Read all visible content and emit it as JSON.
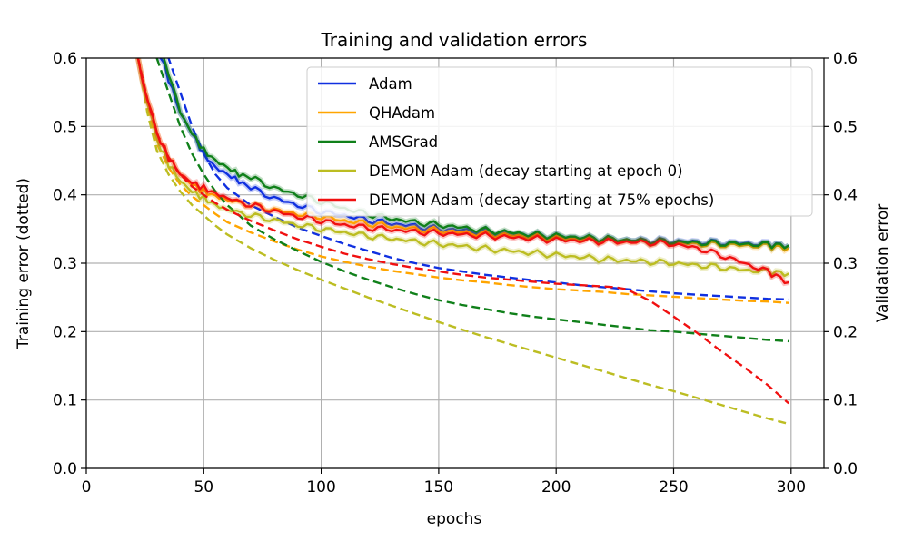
{
  "chart_data": {
    "type": "line",
    "title": "Training and validation errors",
    "xlabel": "epochs",
    "ylabel_left": "Training error (dotted)",
    "ylabel_right": "Validation error",
    "xlim": [
      0,
      314
    ],
    "ylim": [
      0,
      0.6
    ],
    "xticks": [
      0,
      50,
      100,
      150,
      200,
      250,
      300
    ],
    "yticks": [
      0.0,
      0.1,
      0.2,
      0.3,
      0.4,
      0.5,
      0.6
    ],
    "xtick_labels": [
      "0",
      "50",
      "100",
      "150",
      "200",
      "250",
      "300"
    ],
    "ytick_labels": [
      "0.0",
      "0.1",
      "0.2",
      "0.3",
      "0.4",
      "0.5",
      "0.6"
    ],
    "grid": true,
    "legend_position": "top-right",
    "series": [
      {
        "name": "Adam",
        "color": "#1030e0",
        "validation": {
          "x": [
            30,
            35,
            40,
            45,
            50,
            55,
            60,
            65,
            70,
            80,
            90,
            100,
            110,
            120,
            130,
            140,
            150,
            160,
            170,
            180,
            190,
            200,
            210,
            220,
            230,
            240,
            250,
            260,
            270,
            280,
            290,
            299
          ],
          "y": [
            0.62,
            0.57,
            0.52,
            0.49,
            0.46,
            0.44,
            0.43,
            0.42,
            0.41,
            0.395,
            0.385,
            0.375,
            0.37,
            0.363,
            0.358,
            0.354,
            0.35,
            0.348,
            0.346,
            0.343,
            0.341,
            0.339,
            0.337,
            0.335,
            0.334,
            0.333,
            0.332,
            0.331,
            0.33,
            0.329,
            0.328,
            0.326
          ]
        },
        "training": {
          "x": [
            33,
            40,
            45,
            50,
            55,
            60,
            70,
            80,
            90,
            100,
            110,
            120,
            130,
            140,
            150,
            160,
            170,
            180,
            190,
            200,
            210,
            220,
            230,
            240,
            250,
            260,
            270,
            280,
            290,
            299
          ],
          "y": [
            0.62,
            0.55,
            0.5,
            0.46,
            0.43,
            0.41,
            0.385,
            0.368,
            0.352,
            0.34,
            0.328,
            0.318,
            0.308,
            0.3,
            0.293,
            0.288,
            0.283,
            0.279,
            0.275,
            0.272,
            0.268,
            0.265,
            0.262,
            0.259,
            0.256,
            0.254,
            0.252,
            0.25,
            0.248,
            0.247
          ]
        }
      },
      {
        "name": "QHAdam",
        "color": "#ffa500",
        "validation": {
          "x": [
            22,
            26,
            30,
            35,
            40,
            45,
            50,
            55,
            60,
            70,
            80,
            90,
            100,
            110,
            120,
            130,
            140,
            150,
            160,
            170,
            180,
            190,
            200,
            210,
            220,
            230,
            240,
            250,
            260,
            270,
            280,
            290,
            299
          ],
          "y": [
            0.6,
            0.54,
            0.49,
            0.455,
            0.43,
            0.415,
            0.405,
            0.398,
            0.392,
            0.385,
            0.378,
            0.372,
            0.368,
            0.362,
            0.358,
            0.354,
            0.35,
            0.348,
            0.345,
            0.343,
            0.341,
            0.339,
            0.337,
            0.335,
            0.333,
            0.332,
            0.331,
            0.33,
            0.328,
            0.327,
            0.326,
            0.325,
            0.322
          ]
        },
        "training": {
          "x": [
            22,
            26,
            30,
            35,
            40,
            45,
            50,
            55,
            60,
            70,
            80,
            90,
            100,
            110,
            120,
            130,
            140,
            150,
            160,
            170,
            180,
            190,
            200,
            210,
            220,
            230,
            240,
            250,
            260,
            270,
            280,
            290,
            299
          ],
          "y": [
            0.6,
            0.53,
            0.475,
            0.44,
            0.415,
            0.398,
            0.385,
            0.372,
            0.36,
            0.345,
            0.332,
            0.32,
            0.31,
            0.302,
            0.295,
            0.289,
            0.284,
            0.279,
            0.275,
            0.272,
            0.268,
            0.265,
            0.262,
            0.26,
            0.258,
            0.255,
            0.253,
            0.251,
            0.249,
            0.247,
            0.245,
            0.244,
            0.242
          ]
        }
      },
      {
        "name": "AMSGrad",
        "color": "#10801a",
        "validation": {
          "x": [
            33,
            37,
            40,
            45,
            50,
            55,
            60,
            65,
            70,
            80,
            90,
            100,
            110,
            120,
            130,
            140,
            150,
            160,
            170,
            180,
            190,
            200,
            210,
            220,
            230,
            240,
            250,
            260,
            270,
            280,
            290,
            299
          ],
          "y": [
            0.6,
            0.56,
            0.52,
            0.49,
            0.465,
            0.45,
            0.44,
            0.43,
            0.425,
            0.41,
            0.4,
            0.39,
            0.38,
            0.372,
            0.365,
            0.36,
            0.356,
            0.352,
            0.348,
            0.345,
            0.342,
            0.34,
            0.338,
            0.336,
            0.334,
            0.332,
            0.331,
            0.33,
            0.329,
            0.328,
            0.327,
            0.326
          ]
        },
        "training": {
          "x": [
            30,
            35,
            40,
            45,
            50,
            55,
            60,
            70,
            80,
            90,
            100,
            110,
            120,
            130,
            140,
            150,
            160,
            170,
            180,
            190,
            200,
            210,
            220,
            230,
            240,
            250,
            260,
            270,
            280,
            290,
            299
          ],
          "y": [
            0.6,
            0.55,
            0.5,
            0.46,
            0.43,
            0.405,
            0.385,
            0.355,
            0.335,
            0.318,
            0.302,
            0.288,
            0.276,
            0.265,
            0.255,
            0.246,
            0.239,
            0.233,
            0.227,
            0.222,
            0.218,
            0.214,
            0.21,
            0.206,
            0.202,
            0.2,
            0.197,
            0.194,
            0.191,
            0.188,
            0.186
          ]
        }
      },
      {
        "name": "DEMON Adam (decay starting at epoch 0)",
        "color": "#bcbd22",
        "validation": {
          "x": [
            22,
            26,
            30,
            35,
            40,
            45,
            50,
            55,
            60,
            70,
            80,
            90,
            100,
            110,
            120,
            130,
            140,
            150,
            160,
            170,
            180,
            190,
            200,
            210,
            220,
            230,
            240,
            250,
            260,
            270,
            280,
            290,
            299
          ],
          "y": [
            0.6,
            0.535,
            0.48,
            0.445,
            0.42,
            0.405,
            0.395,
            0.385,
            0.378,
            0.37,
            0.363,
            0.356,
            0.35,
            0.345,
            0.34,
            0.336,
            0.332,
            0.328,
            0.325,
            0.321,
            0.318,
            0.315,
            0.312,
            0.309,
            0.306,
            0.304,
            0.302,
            0.3,
            0.297,
            0.294,
            0.29,
            0.288,
            0.285
          ]
        },
        "training": {
          "x": [
            22,
            26,
            30,
            35,
            40,
            45,
            50,
            55,
            60,
            70,
            80,
            90,
            100,
            110,
            120,
            130,
            140,
            150,
            160,
            170,
            180,
            190,
            200,
            210,
            220,
            230,
            240,
            250,
            260,
            270,
            280,
            290,
            299
          ],
          "y": [
            0.6,
            0.52,
            0.465,
            0.43,
            0.405,
            0.385,
            0.37,
            0.355,
            0.342,
            0.322,
            0.305,
            0.29,
            0.276,
            0.263,
            0.25,
            0.238,
            0.226,
            0.214,
            0.203,
            0.192,
            0.182,
            0.172,
            0.162,
            0.152,
            0.142,
            0.132,
            0.122,
            0.113,
            0.103,
            0.093,
            0.083,
            0.073,
            0.065
          ]
        }
      },
      {
        "name": "DEMON Adam (decay starting at 75% epochs)",
        "color": "#f01010",
        "validation": {
          "x": [
            22,
            26,
            30,
            35,
            40,
            45,
            50,
            55,
            60,
            70,
            80,
            90,
            100,
            110,
            120,
            130,
            140,
            150,
            160,
            170,
            180,
            190,
            200,
            210,
            220,
            230,
            240,
            250,
            260,
            270,
            280,
            290,
            299
          ],
          "y": [
            0.6,
            0.54,
            0.49,
            0.455,
            0.43,
            0.418,
            0.41,
            0.402,
            0.395,
            0.385,
            0.376,
            0.368,
            0.362,
            0.356,
            0.352,
            0.349,
            0.346,
            0.344,
            0.342,
            0.34,
            0.338,
            0.336,
            0.334,
            0.333,
            0.332,
            0.331,
            0.33,
            0.328,
            0.322,
            0.312,
            0.3,
            0.288,
            0.272
          ]
        },
        "training": {
          "x": [
            22,
            26,
            30,
            35,
            40,
            45,
            50,
            55,
            60,
            70,
            80,
            90,
            100,
            110,
            120,
            130,
            140,
            150,
            160,
            170,
            180,
            190,
            200,
            210,
            220,
            225,
            230,
            240,
            250,
            260,
            270,
            280,
            290,
            299
          ],
          "y": [
            0.6,
            0.54,
            0.49,
            0.455,
            0.43,
            0.412,
            0.4,
            0.388,
            0.378,
            0.362,
            0.348,
            0.335,
            0.324,
            0.314,
            0.306,
            0.299,
            0.293,
            0.288,
            0.283,
            0.279,
            0.276,
            0.273,
            0.27,
            0.268,
            0.266,
            0.265,
            0.262,
            0.245,
            0.222,
            0.198,
            0.172,
            0.148,
            0.122,
            0.095
          ]
        }
      }
    ]
  }
}
